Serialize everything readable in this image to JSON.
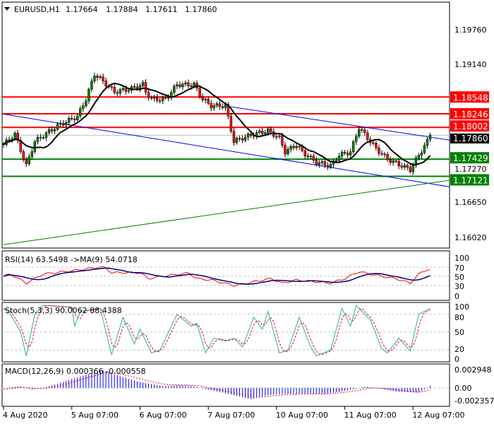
{
  "header": {
    "symbol": "EURUSD,H1",
    "open": "1.17664",
    "high": "1.17884",
    "low": "1.17611",
    "close": "1.17860"
  },
  "colors": {
    "bull": "#008000",
    "bear": "#ff0000",
    "ma": "#000000",
    "resistance": "#ff0000",
    "support": "#008000",
    "channel": "#0000ff",
    "trend": "#008000",
    "rsi": "#ff0000",
    "rsi_ma": "#000080",
    "stoch_main": "#20b2aa",
    "stoch_signal": "#ff0000",
    "macd_hist": "#0000ff",
    "macd_signal": "#ff0000"
  },
  "chart_data": [
    {
      "type": "candlestick",
      "title": "EURUSD,H1",
      "ylim": [
        1.156,
        1.202
      ],
      "y_ticks": [
        "1.19760",
        "1.19140",
        "1.17270",
        "1.16650",
        "1.16020"
      ],
      "current_price": "1.17860",
      "x_ticks": [
        "4 Aug 2020",
        "5 Aug 07:00",
        "6 Aug 07:00",
        "7 Aug 07:00",
        "10 Aug 07:00",
        "11 Aug 07:00",
        "12 Aug 07:00"
      ],
      "x_tick_bars": [
        0,
        24,
        48,
        72,
        96,
        120,
        144
      ],
      "close_anchors": [
        [
          0,
          1.1769
        ],
        [
          4,
          1.1788
        ],
        [
          8,
          1.1731
        ],
        [
          11,
          1.1775
        ],
        [
          19,
          1.1803
        ],
        [
          26,
          1.182
        ],
        [
          29,
          1.1851
        ],
        [
          32,
          1.1896
        ],
        [
          35,
          1.1883
        ],
        [
          39,
          1.1864
        ],
        [
          45,
          1.187
        ],
        [
          49,
          1.1877
        ],
        [
          50,
          1.1864
        ],
        [
          52,
          1.1851
        ],
        [
          57,
          1.1851
        ],
        [
          61,
          1.1877
        ],
        [
          67,
          1.1877
        ],
        [
          70,
          1.1851
        ],
        [
          73,
          1.1839
        ],
        [
          78,
          1.1839
        ],
        [
          81,
          1.1775
        ],
        [
          84,
          1.1781
        ],
        [
          88,
          1.1788
        ],
        [
          93,
          1.1794
        ],
        [
          97,
          1.1781
        ],
        [
          99,
          1.1756
        ],
        [
          103,
          1.1769
        ],
        [
          105,
          1.1756
        ],
        [
          110,
          1.1737
        ],
        [
          115,
          1.1731
        ],
        [
          118,
          1.175
        ],
        [
          122,
          1.1756
        ],
        [
          125,
          1.18
        ],
        [
          128,
          1.1781
        ],
        [
          131,
          1.1762
        ],
        [
          135,
          1.1743
        ],
        [
          140,
          1.1731
        ],
        [
          143,
          1.1724
        ],
        [
          146,
          1.175
        ],
        [
          149,
          1.1775
        ],
        [
          150,
          1.1786
        ]
      ],
      "horizontal_levels": [
        {
          "label": "1.18548",
          "price": 1.18548,
          "kind": "resistance"
        },
        {
          "label": "1.18246",
          "price": 1.18246,
          "kind": "resistance"
        },
        {
          "label": "1.18002",
          "price": 1.18002,
          "kind": "resistance"
        },
        {
          "label": "1.17429",
          "price": 1.17429,
          "kind": "support"
        },
        {
          "label": "1.17121",
          "price": 1.17121,
          "kind": "support"
        }
      ],
      "trendlines": [
        {
          "kind": "channel",
          "from": [
            0,
            1.1824
          ],
          "to": [
            157,
            1.1693
          ]
        },
        {
          "kind": "channel",
          "from": [
            79,
            1.1838
          ],
          "to": [
            157,
            1.1777
          ]
        },
        {
          "kind": "trend",
          "from": [
            0,
            1.1589
          ],
          "to": [
            157,
            1.1705
          ]
        }
      ]
    },
    {
      "type": "line",
      "title": "RSI(14) 63.5498  ->MA(9) 54.0718",
      "ylim": [
        0,
        100
      ],
      "y_ticks": [
        "100",
        "70",
        "50",
        "30",
        "0"
      ],
      "levels": [
        70,
        50,
        30
      ],
      "rsi_anchors": [
        [
          0,
          50
        ],
        [
          2.5,
          55
        ],
        [
          8,
          35
        ],
        [
          14,
          55
        ],
        [
          24,
          62
        ],
        [
          34,
          70
        ],
        [
          36,
          68
        ],
        [
          38,
          58
        ],
        [
          48,
          58
        ],
        [
          51,
          45
        ],
        [
          58,
          52
        ],
        [
          65,
          57
        ],
        [
          68,
          45
        ],
        [
          73,
          42
        ],
        [
          81,
          30
        ],
        [
          88,
          38
        ],
        [
          94,
          45
        ],
        [
          98,
          35
        ],
        [
          103,
          42
        ],
        [
          115,
          35
        ],
        [
          120,
          45
        ],
        [
          125,
          60
        ],
        [
          133,
          50
        ],
        [
          138,
          45
        ],
        [
          143,
          35
        ],
        [
          146,
          55
        ],
        [
          149,
          65
        ],
        [
          150,
          63.5
        ]
      ]
    },
    {
      "type": "line",
      "title": "Stoch(5,3,3) 90.0062 88.4388",
      "ylim": [
        0,
        100
      ],
      "y_ticks": [
        "100",
        "80",
        "50",
        "20",
        "0"
      ],
      "levels": [
        80,
        50,
        20
      ],
      "main_anchors": [
        [
          0,
          90
        ],
        [
          2.5,
          80
        ],
        [
          6,
          50
        ],
        [
          8,
          10
        ],
        [
          11,
          80
        ],
        [
          14,
          95
        ],
        [
          24,
          92
        ],
        [
          25,
          60
        ],
        [
          27,
          85
        ],
        [
          34,
          90
        ],
        [
          38,
          12
        ],
        [
          42,
          75
        ],
        [
          46,
          30
        ],
        [
          48,
          55
        ],
        [
          52,
          15
        ],
        [
          55,
          20
        ],
        [
          61,
          80
        ],
        [
          66,
          60
        ],
        [
          68,
          65
        ],
        [
          71,
          15
        ],
        [
          74,
          40
        ],
        [
          78,
          35
        ],
        [
          81,
          40
        ],
        [
          84,
          25
        ],
        [
          88,
          75
        ],
        [
          91,
          55
        ],
        [
          93,
          85
        ],
        [
          97,
          15
        ],
        [
          100,
          20
        ],
        [
          104,
          75
        ],
        [
          108,
          25
        ],
        [
          110,
          10
        ],
        [
          115,
          20
        ],
        [
          119,
          90
        ],
        [
          122,
          60
        ],
        [
          124,
          95
        ],
        [
          129,
          70
        ],
        [
          133,
          22
        ],
        [
          135,
          15
        ],
        [
          139,
          40
        ],
        [
          143,
          18
        ],
        [
          146,
          80
        ],
        [
          150,
          90
        ]
      ]
    },
    {
      "type": "bar",
      "title": "MACD(12,26,9) 0.000366 -0.000558",
      "y_ticks": [
        "0.002948",
        "0.00",
        "-0.002357"
      ],
      "ylim": [
        -0.0028,
        0.0034
      ],
      "hist_anchors": [
        [
          0,
          0
        ],
        [
          6,
          0.0003
        ],
        [
          10,
          -0.0003
        ],
        [
          14,
          0
        ],
        [
          19,
          0.0007
        ],
        [
          24,
          0.0015
        ],
        [
          31,
          0.0025
        ],
        [
          35,
          0.003
        ],
        [
          41,
          0.002
        ],
        [
          48,
          0.001
        ],
        [
          56,
          0.0003
        ],
        [
          61,
          0.0005
        ],
        [
          66,
          0.0004
        ],
        [
          71,
          -0.0002
        ],
        [
          81,
          -0.0012
        ],
        [
          87,
          -0.0019
        ],
        [
          93,
          -0.0012
        ],
        [
          98,
          -0.001
        ],
        [
          113,
          -0.001
        ],
        [
          120,
          -0.0005
        ],
        [
          127,
          0.0002
        ],
        [
          130,
          0.0001
        ],
        [
          138,
          -0.0006
        ],
        [
          146,
          -0.0008
        ],
        [
          150,
          0.00037
        ]
      ]
    }
  ]
}
